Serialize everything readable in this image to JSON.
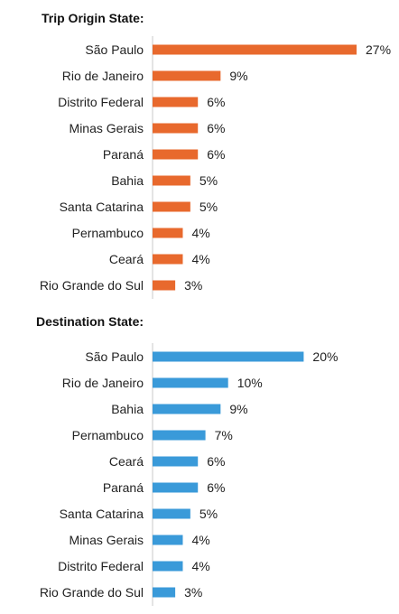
{
  "chart_data": [
    {
      "type": "bar",
      "orientation": "horizontal",
      "title": "Trip Origin State:",
      "categories": [
        "São Paulo",
        "Rio de Janeiro",
        "Distrito Federal",
        "Minas Gerais",
        "Paraná",
        "Bahia",
        "Santa Catarina",
        "Pernambuco",
        "Ceará",
        "Rio Grande do Sul"
      ],
      "values": [
        27,
        9,
        6,
        6,
        6,
        5,
        5,
        4,
        4,
        3
      ],
      "value_labels": [
        "27%",
        "9%",
        "6%",
        "6%",
        "6%",
        "5%",
        "5%",
        "4%",
        "4%",
        "3%"
      ],
      "unit": "%",
      "color": "#E8692D",
      "xlim": [
        0,
        27
      ],
      "grid": false,
      "legend": "none"
    },
    {
      "type": "bar",
      "orientation": "horizontal",
      "title": "Destination State:",
      "categories": [
        "São Paulo",
        "Rio de Janeiro",
        "Bahia",
        "Pernambuco",
        "Ceará",
        "Paraná",
        "Santa Catarina",
        "Minas Gerais",
        "Distrito Federal",
        "Rio Grande do Sul"
      ],
      "values": [
        20,
        10,
        9,
        7,
        6,
        6,
        5,
        4,
        4,
        3
      ],
      "value_labels": [
        "20%",
        "10%",
        "9%",
        "7%",
        "6%",
        "6%",
        "5%",
        "4%",
        "4%",
        "3%"
      ],
      "unit": "%",
      "color": "#3A9AD9",
      "xlim": [
        0,
        27
      ],
      "grid": false,
      "legend": "none"
    }
  ]
}
